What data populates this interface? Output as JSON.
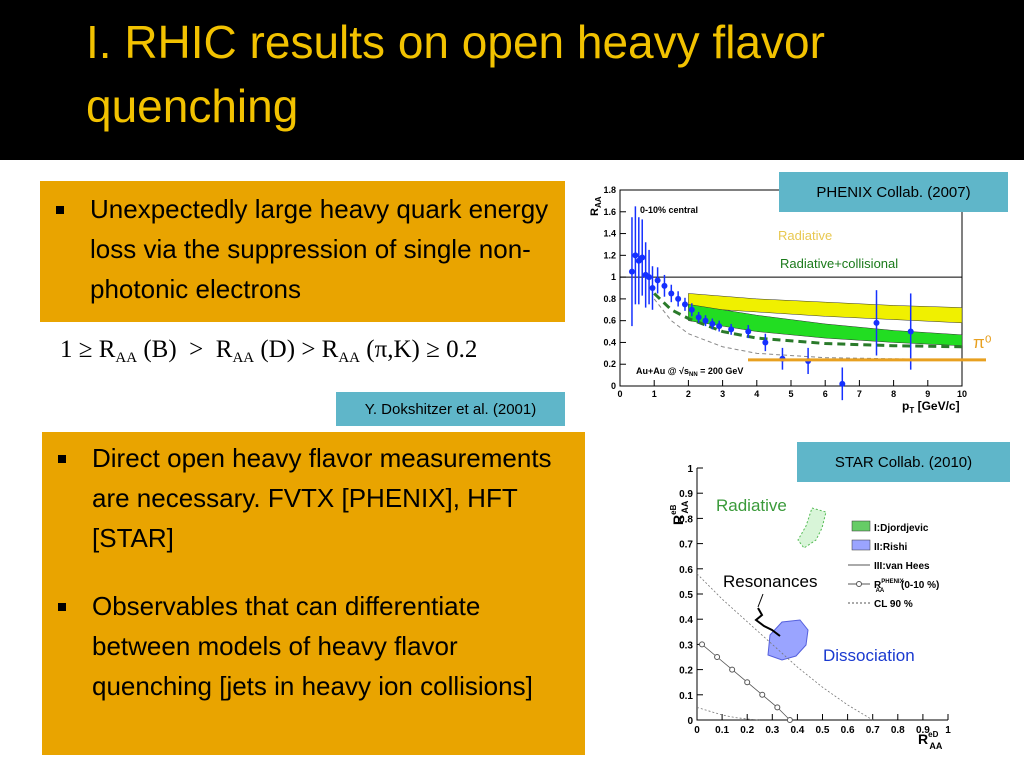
{
  "title": "I. RHIC results on open heavy flavor quenching",
  "box1": {
    "bullets": [
      "Unexpectedly large heavy quark energy loss via the suppression of single non-photonic electrons"
    ]
  },
  "equation": [
    "1 ≥ R",
    "AA",
    " (B)  >  R",
    "AA",
    " (D) > R",
    "AA",
    " (π,K) ≥ 0.2"
  ],
  "citation": "Y. Dokshitzer et al. (2001)",
  "box2": {
    "bullets": [
      "Direct open heavy flavor measurements are necessary. FVTX [PHENIX], HFT [STAR]",
      "Observables that can differentiate between models of heavy flavor quenching [jets in heavy ion collisions]"
    ]
  },
  "chart_data": [
    {
      "type": "scatter",
      "source": "PHENIX Collab.  (2007)",
      "ylabel": [
        "R",
        "AA"
      ],
      "xlabel": [
        "p",
        "T",
        " [GeV/c]"
      ],
      "centrality": "0-10% central",
      "system": [
        "Au+Au @ √s",
        "NN",
        " = 200 GeV"
      ],
      "xlim": [
        0,
        10
      ],
      "ylim": [
        0,
        1.8
      ],
      "xticks": [
        0,
        1,
        2,
        3,
        4,
        5,
        6,
        7,
        8,
        9,
        10
      ],
      "yticks": [
        0,
        0.2,
        0.4,
        0.6,
        0.8,
        1,
        1.2,
        1.4,
        1.6,
        1.8
      ],
      "reference": 1,
      "points": {
        "color": "#1530ff",
        "x": [
          0.35,
          0.45,
          0.55,
          0.65,
          0.75,
          0.85,
          0.95,
          1.1,
          1.3,
          1.5,
          1.7,
          1.9,
          2.1,
          2.3,
          2.5,
          2.7,
          2.9,
          3.25,
          3.75,
          4.25,
          4.75,
          5.5,
          6.5,
          7.5,
          8.5
        ],
        "values": [
          1.05,
          1.2,
          1.15,
          1.18,
          1.02,
          1.0,
          0.9,
          0.97,
          0.92,
          0.85,
          0.8,
          0.75,
          0.7,
          0.63,
          0.6,
          0.57,
          0.55,
          0.52,
          0.5,
          0.4,
          0.25,
          0.23,
          0.02,
          0.58,
          0.5
        ],
        "errors": [
          0.5,
          0.45,
          0.4,
          0.35,
          0.3,
          0.25,
          0.2,
          0.12,
          0.1,
          0.08,
          0.07,
          0.06,
          0.06,
          0.05,
          0.05,
          0.05,
          0.05,
          0.05,
          0.06,
          0.08,
          0.1,
          0.12,
          0.15,
          0.3,
          0.35
        ]
      },
      "bands": [
        {
          "name": "Radiative",
          "color": "#f0f000",
          "x": [
            2,
            4,
            6,
            8,
            10
          ],
          "low": [
            0.72,
            0.68,
            0.64,
            0.61,
            0.58
          ],
          "high": [
            0.85,
            0.8,
            0.77,
            0.74,
            0.72
          ]
        },
        {
          "name": "Radiative+collisional",
          "color": "#22dd22",
          "x": [
            2,
            4,
            6,
            8,
            10
          ],
          "low": [
            0.6,
            0.5,
            0.44,
            0.4,
            0.37
          ],
          "high": [
            0.75,
            0.65,
            0.57,
            0.51,
            0.47
          ]
        }
      ],
      "curves": [
        {
          "color": "#2a7a2a",
          "x": [
            1,
            1.5,
            2,
            3,
            4,
            6,
            8,
            10
          ],
          "values": [
            0.85,
            0.7,
            0.62,
            0.5,
            0.44,
            0.39,
            0.37,
            0.36
          ]
        },
        {
          "color": "#888888",
          "x": [
            1,
            1.5,
            2,
            3,
            4,
            6,
            8,
            10
          ],
          "values": [
            0.8,
            0.6,
            0.48,
            0.36,
            0.3,
            0.26,
            0.25,
            0.24
          ]
        }
      ],
      "pi0": {
        "name": "π⁰",
        "value": 0.24,
        "color": "#e8a020"
      }
    },
    {
      "type": "line",
      "source": "STAR Collab.  (2010)",
      "ylabel": [
        "R",
        "AA",
        "eB"
      ],
      "xlabel": [
        "R",
        "AA",
        "eD"
      ],
      "xlim": [
        0,
        1
      ],
      "ylim": [
        0,
        1
      ],
      "xticks": [
        0,
        0.1,
        0.2,
        0.3,
        0.4,
        0.5,
        0.6,
        0.7,
        0.8,
        0.9,
        1
      ],
      "yticks": [
        0,
        0.1,
        0.2,
        0.3,
        0.4,
        0.5,
        0.6,
        0.7,
        0.8,
        0.9,
        1
      ],
      "legend": [
        {
          "name": "I:Djordjevic",
          "color": "#66cc66"
        },
        {
          "name": "II:Rishi",
          "color": "#9aa4ff"
        },
        {
          "name": "III:van Hees",
          "color": "#555555"
        },
        {
          "name": "R",
          "sub": "AA",
          "sup": "PHENIX",
          "suffix": " (0-10 %)",
          "color": "#555555"
        },
        {
          "name": "CL 90 %",
          "color": "#555555"
        }
      ],
      "annotations": [
        {
          "text": "Radiative",
          "color": "#3a9a3a"
        },
        {
          "text": "Resonances",
          "color": "#000000"
        },
        {
          "text": "Dissociation",
          "color": "#1a3ad0"
        }
      ],
      "series": [
        {
          "color": "#555555",
          "x": [
            0.02,
            0.08,
            0.14,
            0.2,
            0.26,
            0.32,
            0.37
          ],
          "values": [
            0.3,
            0.25,
            0.2,
            0.15,
            0.1,
            0.05,
            0
          ]
        },
        {
          "color": "#777777",
          "x": [
            0,
            0.1,
            0.2,
            0.3,
            0.4,
            0.5,
            0.6,
            0.7
          ],
          "values": [
            0.58,
            0.48,
            0.39,
            0.3,
            0.21,
            0.13,
            0.06,
            0
          ]
        },
        {
          "color": "#777777",
          "x": [
            0,
            0.05,
            0.1,
            0.15,
            0.2,
            0.25
          ],
          "values": [
            0.05,
            0.035,
            0.02,
            0.01,
            0.004,
            0
          ]
        }
      ]
    }
  ]
}
